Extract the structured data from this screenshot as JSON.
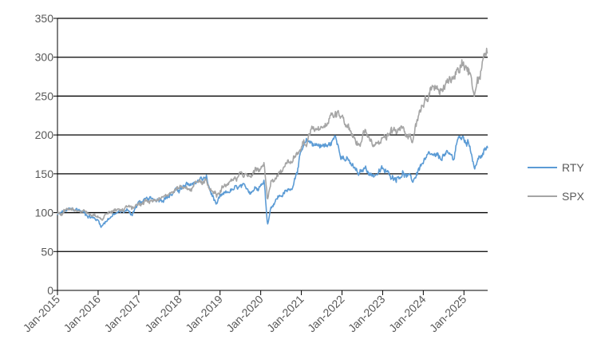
{
  "chart_data": {
    "type": "line",
    "title": "",
    "xlabel": "",
    "ylabel": "",
    "ylim": [
      0,
      350
    ],
    "yticks": [
      0,
      50,
      100,
      150,
      200,
      250,
      300,
      350
    ],
    "xlim": [
      "2015-01",
      "2025-08"
    ],
    "xticks": [
      "Jan-2015",
      "Jan-2016",
      "Jan-2017",
      "Jan-2018",
      "Jan-2019",
      "Jan-2020",
      "Jan-2021",
      "Jan-2022",
      "Jan-2023",
      "Jan-2024",
      "Jan-2025"
    ],
    "grid": "horizontal",
    "legend": "right",
    "series": [
      {
        "name": "RTY",
        "color": "#5b9bd5",
        "x": [
          "2015-01",
          "2015-04",
          "2015-07",
          "2015-10",
          "2016-01",
          "2016-02",
          "2016-04",
          "2016-07",
          "2016-10",
          "2016-11",
          "2017-01",
          "2017-04",
          "2017-07",
          "2017-10",
          "2018-01",
          "2018-04",
          "2018-07",
          "2018-09",
          "2018-10",
          "2018-12",
          "2019-01",
          "2019-04",
          "2019-07",
          "2019-10",
          "2020-01",
          "2020-02",
          "2020-03",
          "2020-04",
          "2020-06",
          "2020-09",
          "2020-10",
          "2020-11",
          "2021-01",
          "2021-03",
          "2021-06",
          "2021-09",
          "2021-11",
          "2022-01",
          "2022-03",
          "2022-06",
          "2022-08",
          "2022-10",
          "2023-01",
          "2023-03",
          "2023-05",
          "2023-07",
          "2023-10",
          "2023-12",
          "2024-03",
          "2024-06",
          "2024-07",
          "2024-10",
          "2024-11",
          "2025-01",
          "2025-03",
          "2025-04",
          "2025-05",
          "2025-07",
          "2025-08"
        ],
        "values": [
          97,
          103,
          104,
          97,
          90,
          83,
          93,
          100,
          103,
          98,
          113,
          116,
          118,
          122,
          130,
          135,
          143,
          144,
          128,
          110,
          118,
          128,
          132,
          128,
          138,
          142,
          85,
          108,
          120,
          128,
          130,
          145,
          178,
          190,
          188,
          185,
          197,
          175,
          165,
          148,
          158,
          148,
          155,
          148,
          146,
          152,
          140,
          160,
          172,
          168,
          175,
          170,
          195,
          195,
          185,
          160,
          168,
          178,
          183
        ]
      },
      {
        "name": "SPX",
        "color": "#a5a5a5",
        "x": [
          "2015-01",
          "2015-04",
          "2015-07",
          "2015-10",
          "2016-01",
          "2016-02",
          "2016-04",
          "2016-07",
          "2016-10",
          "2016-11",
          "2017-01",
          "2017-04",
          "2017-07",
          "2017-10",
          "2018-01",
          "2018-04",
          "2018-07",
          "2018-09",
          "2018-10",
          "2018-12",
          "2019-01",
          "2019-04",
          "2019-07",
          "2019-10",
          "2020-01",
          "2020-02",
          "2020-03",
          "2020-04",
          "2020-06",
          "2020-09",
          "2020-10",
          "2020-11",
          "2021-01",
          "2021-03",
          "2021-06",
          "2021-09",
          "2021-11",
          "2022-01",
          "2022-03",
          "2022-06",
          "2022-08",
          "2022-10",
          "2023-01",
          "2023-03",
          "2023-05",
          "2023-07",
          "2023-10",
          "2023-12",
          "2024-03",
          "2024-06",
          "2024-07",
          "2024-10",
          "2024-11",
          "2025-01",
          "2025-03",
          "2025-04",
          "2025-05",
          "2025-07",
          "2025-08"
        ],
        "values": [
          98,
          103,
          104,
          100,
          95,
          91,
          100,
          106,
          105,
          105,
          112,
          115,
          120,
          126,
          137,
          128,
          140,
          144,
          133,
          122,
          130,
          142,
          147,
          150,
          160,
          162,
          115,
          138,
          150,
          165,
          165,
          175,
          185,
          195,
          210,
          215,
          225,
          222,
          210,
          182,
          205,
          185,
          198,
          200,
          205,
          215,
          200,
          235,
          255,
          265,
          265,
          272,
          290,
          295,
          285,
          255,
          275,
          295,
          305
        ]
      }
    ]
  }
}
